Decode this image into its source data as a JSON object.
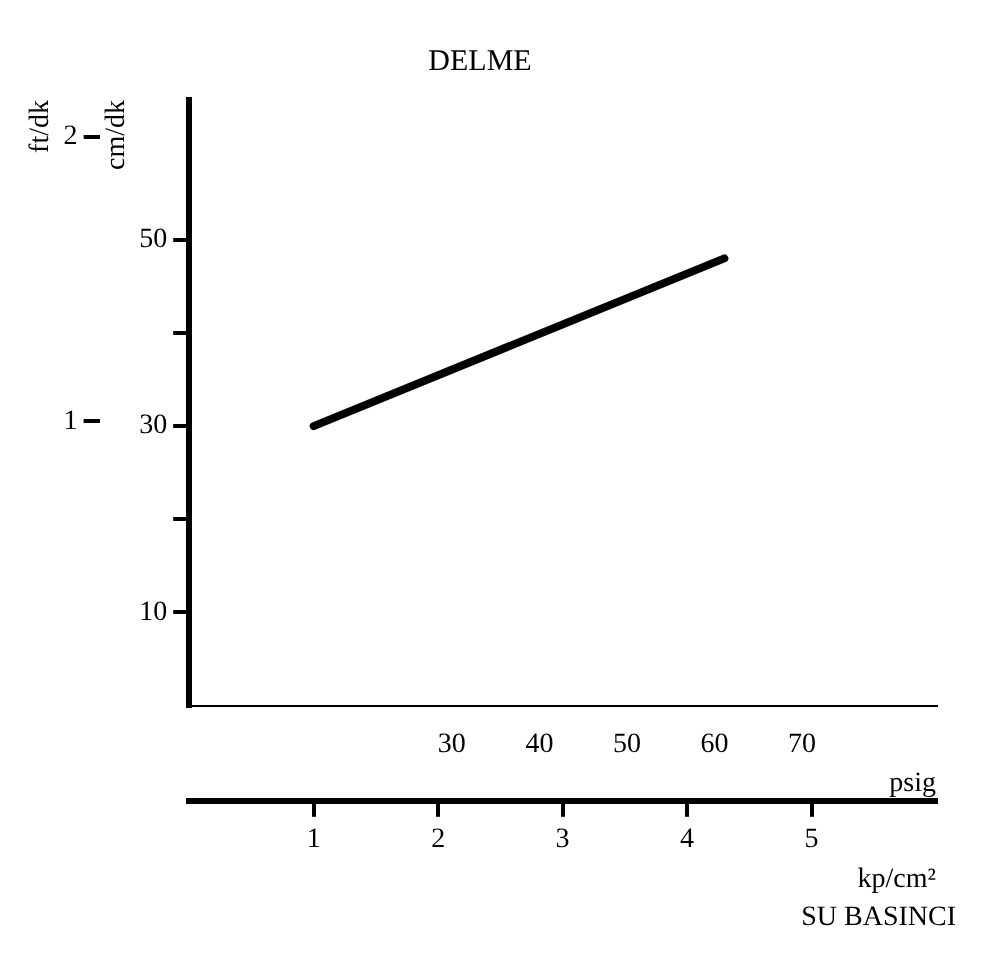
{
  "chart_data": {
    "type": "line",
    "title": "DELME",
    "xlabel": "kp/cm²",
    "x2label": "psig",
    "ylabel": "cm/dk",
    "y2label": "ft/dk",
    "annotations": [
      "SU BASINCI"
    ],
    "x": [
      1,
      4.3
    ],
    "series": [
      {
        "color": "#000000",
        "values": [
          30,
          48
        ]
      }
    ],
    "xlim": [
      0,
      6
    ],
    "xticks": [
      1,
      2,
      3,
      4,
      5
    ],
    "x2lim": [
      0,
      85.3
    ],
    "x2ticks": [
      30,
      40,
      50,
      60,
      70
    ],
    "ylim": [
      0,
      65
    ],
    "yticks": [
      10,
      {
        "value": 20,
        "label": null
      },
      30,
      {
        "value": 40,
        "label": null
      },
      50
    ],
    "y2lim": [
      0,
      2.13
    ],
    "y2ticks": [
      1,
      2
    ],
    "grid": false,
    "legend": false,
    "marker": "none",
    "line_style": "solid"
  }
}
